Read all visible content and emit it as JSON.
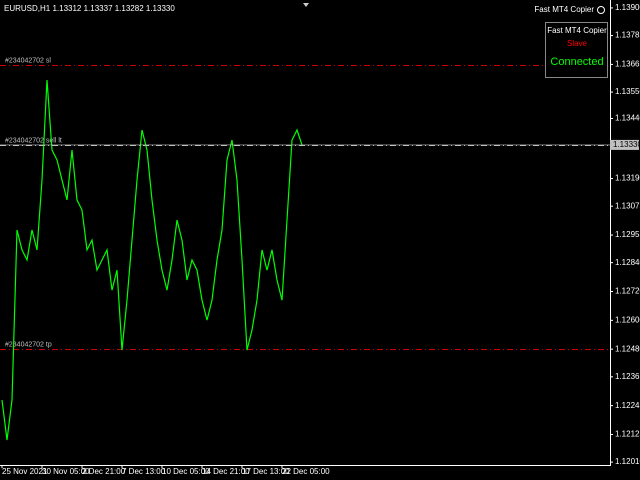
{
  "chart_data": {
    "type": "line",
    "title": "EURUSD,H1  1.13312 1.13337 1.13282 1.13330",
    "expert_name": "Fast MT4 Copier",
    "panel": {
      "title": "Fast MT4 Copier",
      "mode": "Slave",
      "status": "Connected"
    },
    "color": "#00ff00",
    "categories": [
      "25 Nov 2021",
      null,
      null,
      null,
      null,
      null,
      null,
      null,
      "30 Nov 05:00",
      null,
      null,
      null,
      null,
      null,
      null,
      null,
      "2 Dec 21:00",
      null,
      null,
      null,
      null,
      null,
      null,
      null,
      "7 Dec 13:00",
      null,
      null,
      null,
      null,
      null,
      null,
      null,
      "10 Dec 05:00",
      null,
      null,
      null,
      null,
      null,
      null,
      null,
      "14 Dec 21:00",
      null,
      null,
      null,
      null,
      null,
      null,
      null,
      "17 Dec 13:00",
      null,
      null,
      null,
      null,
      null,
      null,
      null,
      "22 Dec 05:00",
      null,
      null,
      null,
      null
    ],
    "values": [
      1.12268,
      1.12102,
      1.12268,
      1.12976,
      1.12893,
      1.12851,
      1.12976,
      1.12893,
      1.13184,
      1.136,
      1.13309,
      1.13267,
      1.13184,
      1.13101,
      1.13309,
      1.13101,
      1.13059,
      1.12893,
      1.12934,
      1.12809,
      1.12851,
      1.12893,
      1.12726,
      1.12809,
      1.12476,
      1.12684,
      1.12934,
      1.13184,
      1.13392,
      1.13309,
      1.13101,
      1.12934,
      1.12809,
      1.12726,
      1.12851,
      1.13017,
      1.12934,
      1.12768,
      1.12851,
      1.12809,
      1.12684,
      1.12601,
      1.12684,
      1.12851,
      1.12976,
      1.13267,
      1.1335,
      1.13184,
      1.12851,
      1.12476,
      1.1256,
      1.12684,
      1.12893,
      1.12809,
      1.12893,
      1.12768,
      1.12684,
      1.13017,
      1.1335,
      1.13392,
      1.1333
    ],
    "ylim": [
      1.11998,
      1.13933
    ],
    "yticks": [
      {
        "value": 1.139,
        "label": "1.13900"
      },
      1.13785,
      1.13665,
      {
        "value": 1.1355,
        "label": "1.13550"
      },
      {
        "value": 1.1344,
        "label": "1.13440"
      },
      {
        "value": 1.1319,
        "label": "1.13190"
      },
      1.13075,
      1.12955,
      {
        "value": 1.1284,
        "label": "1.12840"
      },
      {
        "value": 1.1272,
        "label": "1.12720"
      },
      {
        "value": 1.126,
        "label": "1.12600"
      },
      {
        "value": 1.1248,
        "label": "1.12480"
      },
      1.12365,
      1.12245,
      1.12125,
      {
        "value": 1.1201,
        "label": "1.12010"
      }
    ],
    "current_price": {
      "value": 1.1333,
      "label": "1.13330"
    },
    "levels": [
      {
        "label": "#234042702 sl",
        "value": 1.13663,
        "color": "#cc0000"
      },
      {
        "label": "#234042702 sell lt",
        "value": 1.1333,
        "color": "#c0c0c0"
      },
      {
        "label": "#234042702 tp",
        "value": 1.1248,
        "color": "#cc0000"
      }
    ]
  }
}
